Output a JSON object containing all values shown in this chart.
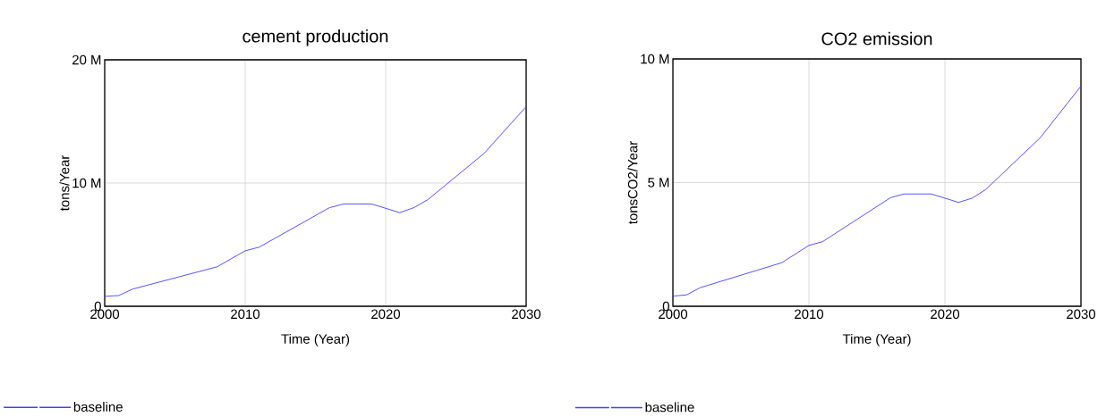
{
  "chart_data": [
    {
      "type": "line",
      "title": "cement production",
      "xlabel": "Time (Year)",
      "ylabel": "tons/Year",
      "x": [
        2000,
        2001,
        2002,
        2008,
        2010,
        2011,
        2016,
        2017,
        2019,
        2021,
        2022,
        2023,
        2027,
        2030
      ],
      "series": [
        {
          "name": "baseline",
          "color": "#4040ff",
          "values": [
            800000,
            870000,
            1400000,
            3200000,
            4500000,
            4800000,
            8000000,
            8300000,
            8300000,
            7600000,
            8000000,
            8650000,
            12400000,
            16200000
          ]
        }
      ],
      "xlim": [
        2000,
        2030
      ],
      "xticks": [
        2000,
        2010,
        2020,
        2030
      ],
      "ylim": [
        0,
        20000000
      ],
      "yticks": [
        {
          "value": 0,
          "label": "0"
        },
        {
          "value": 10000000,
          "label": "10 M"
        },
        {
          "value": 20000000,
          "label": "20 M"
        }
      ],
      "grid": true,
      "legend": "bottom left",
      "marker": "none",
      "line_style": "solid"
    },
    {
      "type": "line",
      "title": "CO2 emission",
      "xlabel": "Time (Year)",
      "ylabel": "tonsCO2/Year",
      "x": [
        2000,
        2001,
        2002,
        2008,
        2010,
        2011,
        2016,
        2017,
        2019,
        2021,
        2022,
        2023,
        2027,
        2030
      ],
      "series": [
        {
          "name": "baseline",
          "color": "#4040ff",
          "values": [
            410000,
            460000,
            750000,
            1760000,
            2460000,
            2610000,
            4390000,
            4540000,
            4540000,
            4200000,
            4370000,
            4720000,
            6810000,
            8900000
          ]
        }
      ],
      "xlim": [
        2000,
        2030
      ],
      "xticks": [
        2000,
        2010,
        2020,
        2030
      ],
      "ylim": [
        0,
        10000000
      ],
      "yticks": [
        {
          "value": 0,
          "label": "0"
        },
        {
          "value": 5000000,
          "label": "5 M"
        },
        {
          "value": 10000000,
          "label": "10 M"
        }
      ],
      "grid": true,
      "legend": "bottom left",
      "marker": "none",
      "line_style": "solid"
    }
  ]
}
